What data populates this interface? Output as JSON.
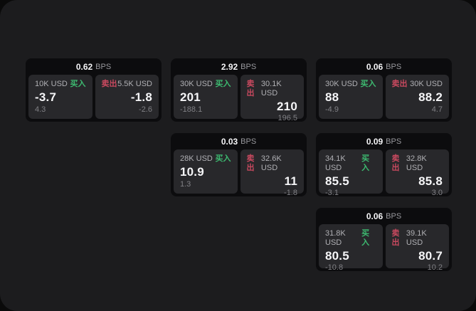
{
  "labels": {
    "bps_unit": "BPS",
    "buy": "买入",
    "sell": "卖出"
  },
  "colors": {
    "buy_green": "#3dba70",
    "sell_red": "#c9495f",
    "panel_bg": "#1c1c1e",
    "card_bg": "#0c0c0e",
    "pane_bg": "#28282b"
  },
  "cards": [
    {
      "bps": "0.62",
      "buy": {
        "notional": "10K USD",
        "price": "-3.7",
        "delta": "4.3"
      },
      "sell": {
        "notional": "5.5K USD",
        "price": "-1.8",
        "delta": "-2.6"
      }
    },
    {
      "bps": "2.92",
      "buy": {
        "notional": "30K USD",
        "price": "201",
        "delta": "-188.1"
      },
      "sell": {
        "notional": "30.1K USD",
        "price": "210",
        "delta": "196.5"
      }
    },
    {
      "bps": "0.06",
      "buy": {
        "notional": "30K USD",
        "price": "88",
        "delta": "-4.9"
      },
      "sell": {
        "notional": "30K USD",
        "price": "88.2",
        "delta": "4.7"
      }
    },
    {
      "bps": "0.03",
      "buy": {
        "notional": "28K USD",
        "price": "10.9",
        "delta": "1.3"
      },
      "sell": {
        "notional": "32.6K USD",
        "price": "11",
        "delta": "-1.8"
      }
    },
    {
      "bps": "0.09",
      "buy": {
        "notional": "34.1K USD",
        "price": "85.5",
        "delta": "-3.1"
      },
      "sell": {
        "notional": "32.8K USD",
        "price": "85.8",
        "delta": "3.0"
      }
    },
    {
      "bps": "0.06",
      "buy": {
        "notional": "31.8K USD",
        "price": "80.5",
        "delta": "-10.8"
      },
      "sell": {
        "notional": "39.1K USD",
        "price": "80.7",
        "delta": "10.2"
      }
    }
  ]
}
